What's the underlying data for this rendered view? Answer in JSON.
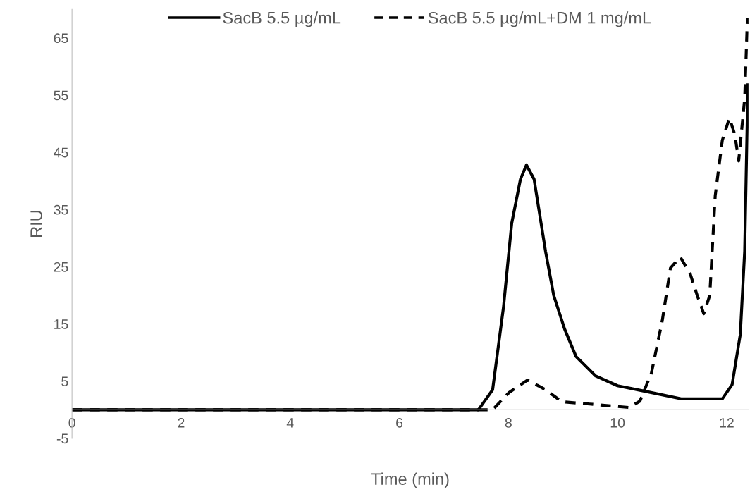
{
  "chart_data": {
    "type": "line",
    "xlabel": "Time (min)",
    "ylabel": "RIU",
    "xlim": [
      0,
      12.4
    ],
    "xticks": [
      0,
      2,
      4,
      6,
      8,
      10,
      12
    ],
    "ylim": [
      -5,
      70
    ],
    "yticks": [
      -5,
      5,
      15,
      25,
      35,
      45,
      55,
      65
    ],
    "grid": false,
    "legend": "top",
    "marker": "none",
    "series": [
      {
        "name": "SacB 5.5 µg/mL",
        "color": "#000000",
        "line_style": "solid",
        "x": [
          0,
          7.45,
          7.71,
          7.91,
          8.06,
          8.22,
          8.33,
          8.47,
          8.68,
          8.83,
          9.03,
          9.24,
          9.6,
          10.0,
          10.52,
          11.18,
          11.92,
          12.1,
          12.25,
          12.33,
          12.39
        ],
        "values": [
          0,
          0,
          3.5,
          18.0,
          32.6,
          40.3,
          42.8,
          40.3,
          27.7,
          20.0,
          14.1,
          9.3,
          5.9,
          4.2,
          3.2,
          1.9,
          1.9,
          4.4,
          13.2,
          27.7,
          56.8
        ]
      },
      {
        "name": "SacB 5.5 µg/mL+DM 1 mg/mL",
        "color": "#000000",
        "line_style": "dashed",
        "x": [
          0,
          7.71,
          8.01,
          8.35,
          8.68,
          8.98,
          9.49,
          10.21,
          10.41,
          10.62,
          10.82,
          10.97,
          11.15,
          11.33,
          11.46,
          11.58,
          11.69,
          11.79,
          11.92,
          12.05,
          12.15,
          12.22,
          12.33,
          12.38
        ],
        "values": [
          0,
          0,
          3.0,
          5.2,
          3.5,
          1.4,
          1.0,
          0.4,
          1.5,
          6.4,
          15.6,
          24.8,
          26.7,
          23.8,
          20.0,
          16.8,
          20.0,
          37.4,
          47.1,
          51.0,
          48.1,
          43.5,
          54.4,
          68.5
        ]
      }
    ]
  }
}
